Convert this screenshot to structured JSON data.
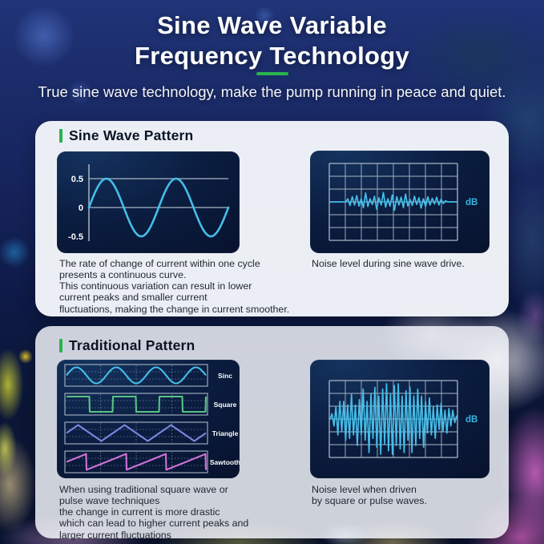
{
  "page": {
    "title_line1": "Sine Wave Variable",
    "title_line2": "Frequency Technology",
    "subtitle": "True sine wave technology, make the pump running in peace and quiet."
  },
  "colors": {
    "accent_green": "#29b34e",
    "wave_cyan": "#45bde8",
    "wave_green": "#57c385",
    "wave_triangle": "#7d85e0",
    "wave_sawtooth": "#cf72d8",
    "db_cyan": "#35b6e6",
    "grid_gray": "#a8b6c6",
    "panel_navy": "#0b1d40",
    "card_white": "#f3f6fa",
    "background_navy": "#15235a"
  },
  "cards": {
    "sine": {
      "header": "Sine Wave Pattern",
      "left_caption": "The rate of change of current within one cycle\npresents a continuous curve.\nThis continuous variation can result in lower\ncurrent peaks and smaller current\nfluctuations, making the change in current smoother.",
      "right_caption": "Noise level during sine wave drive."
    },
    "traditional": {
      "header": "Traditional Pattern",
      "left_caption": "When using traditional square wave or\npulse wave techniques\nthe change in current is more drastic\nwhich can lead to higher current peaks and\nlarger current fluctuations",
      "right_caption": "Noise level when driven\nby square or pulse waves."
    }
  },
  "chart_data": [
    {
      "id": "sine-wave-pattern",
      "type": "line",
      "title": "Sine Wave Pattern",
      "waveform": "sine",
      "cycles": 2,
      "amplitude": 0.5,
      "ylim": [
        -0.5,
        0.5
      ],
      "y_ticks": [
        "0.5",
        "0",
        "-0.5"
      ],
      "gridlines_y": [
        0.5,
        0
      ],
      "series": [
        {
          "name": "sine current",
          "color_key": "wave_cyan"
        }
      ]
    },
    {
      "id": "noise-sine-drive",
      "type": "line",
      "title": "Noise level during sine wave drive",
      "ylabel": "dB",
      "level": "low",
      "grid": {
        "cols": 8,
        "rows": 6
      },
      "values": [
        0,
        0,
        0,
        0,
        0,
        0,
        0,
        0,
        0.3,
        -0.35,
        0.5,
        -0.3,
        0.6,
        -0.4,
        0.3,
        -0.55,
        0.85,
        -0.45,
        0.3,
        -0.25,
        0.55,
        -0.7,
        0.4,
        -0.3,
        0.9,
        -0.5,
        0.3,
        -0.4,
        0.65,
        -0.8,
        0.5,
        -0.3,
        0.45,
        -0.55,
        0.75,
        -0.4,
        0.25,
        -0.35,
        0.55,
        -0.25,
        0.4,
        -0.6,
        0.3,
        -0.45,
        0.5,
        -0.3,
        0.35,
        -0.2,
        0.45,
        -0.3,
        0.25,
        -0.15,
        0.1,
        0,
        0,
        0,
        0,
        0
      ]
    },
    {
      "id": "traditional-waveforms",
      "type": "line",
      "title": "Traditional Pattern waveforms",
      "rows": [
        {
          "label": "Sinc",
          "waveform": "sine",
          "cycles": 3.5,
          "color_key": "wave_cyan"
        },
        {
          "label": "Square",
          "waveform": "square",
          "cycles": 3,
          "color_key": "wave_green"
        },
        {
          "label": "Triangle",
          "waveform": "triangle",
          "cycles": 3,
          "color_key": "wave_triangle"
        },
        {
          "label": "Sawtooth",
          "waveform": "sawtooth",
          "cycles": 3.5,
          "color_key": "wave_sawtooth"
        }
      ]
    },
    {
      "id": "noise-square-drive",
      "type": "line",
      "title": "Noise level when driven by square or pulse waves",
      "ylabel": "dB",
      "level": "high",
      "grid": {
        "cols": 8,
        "rows": 6
      },
      "values": [
        0,
        0.15,
        -0.2,
        0.35,
        -0.45,
        0.5,
        -0.35,
        0.5,
        -0.6,
        0.4,
        -0.55,
        0.7,
        -0.45,
        0.4,
        -0.75,
        0.55,
        -0.45,
        0.85,
        -0.6,
        0.5,
        -0.95,
        0.7,
        -0.55,
        0.9,
        -0.8,
        0.65,
        -1,
        0.85,
        -0.7,
        1,
        -0.9,
        0.7,
        -1,
        0.95,
        -0.75,
        1,
        -0.85,
        0.65,
        -0.95,
        0.8,
        -0.6,
        0.9,
        -0.95,
        0.65,
        -0.75,
        0.85,
        -0.55,
        0.65,
        -0.8,
        0.5,
        -0.4,
        0.6,
        -0.45,
        0.35,
        -0.55,
        0.4,
        -0.3,
        0.45,
        -0.35,
        0.25,
        -0.4,
        0.3,
        -0.2,
        0.25,
        -0.1,
        0.1
      ]
    }
  ]
}
